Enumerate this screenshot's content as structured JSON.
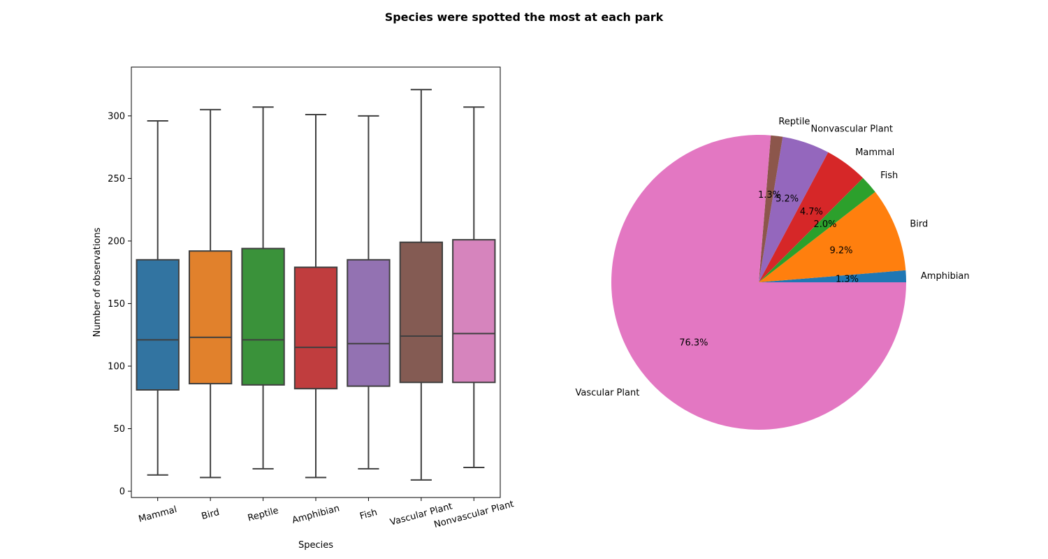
{
  "figure": {
    "title": "Species were spotted the most at each park"
  },
  "chart_data": [
    {
      "type": "box",
      "title": "",
      "xlabel": "Species",
      "ylabel": "Number of observations",
      "ylim": [
        -5,
        339
      ],
      "yticks": [
        0,
        50,
        100,
        150,
        200,
        250,
        300
      ],
      "grid": false,
      "categories": [
        "Mammal",
        "Bird",
        "Reptile",
        "Amphibian",
        "Fish",
        "Vascular Plant",
        "Nonvascular Plant"
      ],
      "colors": [
        "#3274a1",
        "#e1812c",
        "#3a923a",
        "#c03d3e",
        "#9372b2",
        "#845b53",
        "#d684bd"
      ],
      "boxes": [
        {
          "min": 13,
          "q1": 81,
          "median": 121,
          "q3": 185,
          "max": 296
        },
        {
          "min": 11,
          "q1": 86,
          "median": 123,
          "q3": 192,
          "max": 305
        },
        {
          "min": 18,
          "q1": 85,
          "median": 121,
          "q3": 194,
          "max": 307
        },
        {
          "min": 11,
          "q1": 82,
          "median": 115,
          "q3": 179,
          "max": 301
        },
        {
          "min": 18,
          "q1": 84,
          "median": 118,
          "q3": 185,
          "max": 300
        },
        {
          "min": 9,
          "q1": 87,
          "median": 124,
          "q3": 199,
          "max": 321
        },
        {
          "min": 19,
          "q1": 87,
          "median": 126,
          "q3": 201,
          "max": 307
        }
      ]
    },
    {
      "type": "pie",
      "title": "",
      "start_angle_deg": 0,
      "labels": [
        "Amphibian",
        "Bird",
        "Fish",
        "Mammal",
        "Nonvascular Plant",
        "Reptile",
        "Vascular Plant"
      ],
      "values": [
        1.3,
        9.2,
        2.0,
        4.7,
        5.2,
        1.3,
        76.3
      ],
      "pct_labels": [
        "1.3%",
        "9.2%",
        "2.0%",
        "4.7%",
        "5.2%",
        "1.3%",
        "76.3%"
      ],
      "colors": [
        "#1f77b4",
        "#ff7f0e",
        "#2ca02c",
        "#d62728",
        "#9467bd",
        "#8c564b",
        "#e377c2"
      ]
    }
  ]
}
